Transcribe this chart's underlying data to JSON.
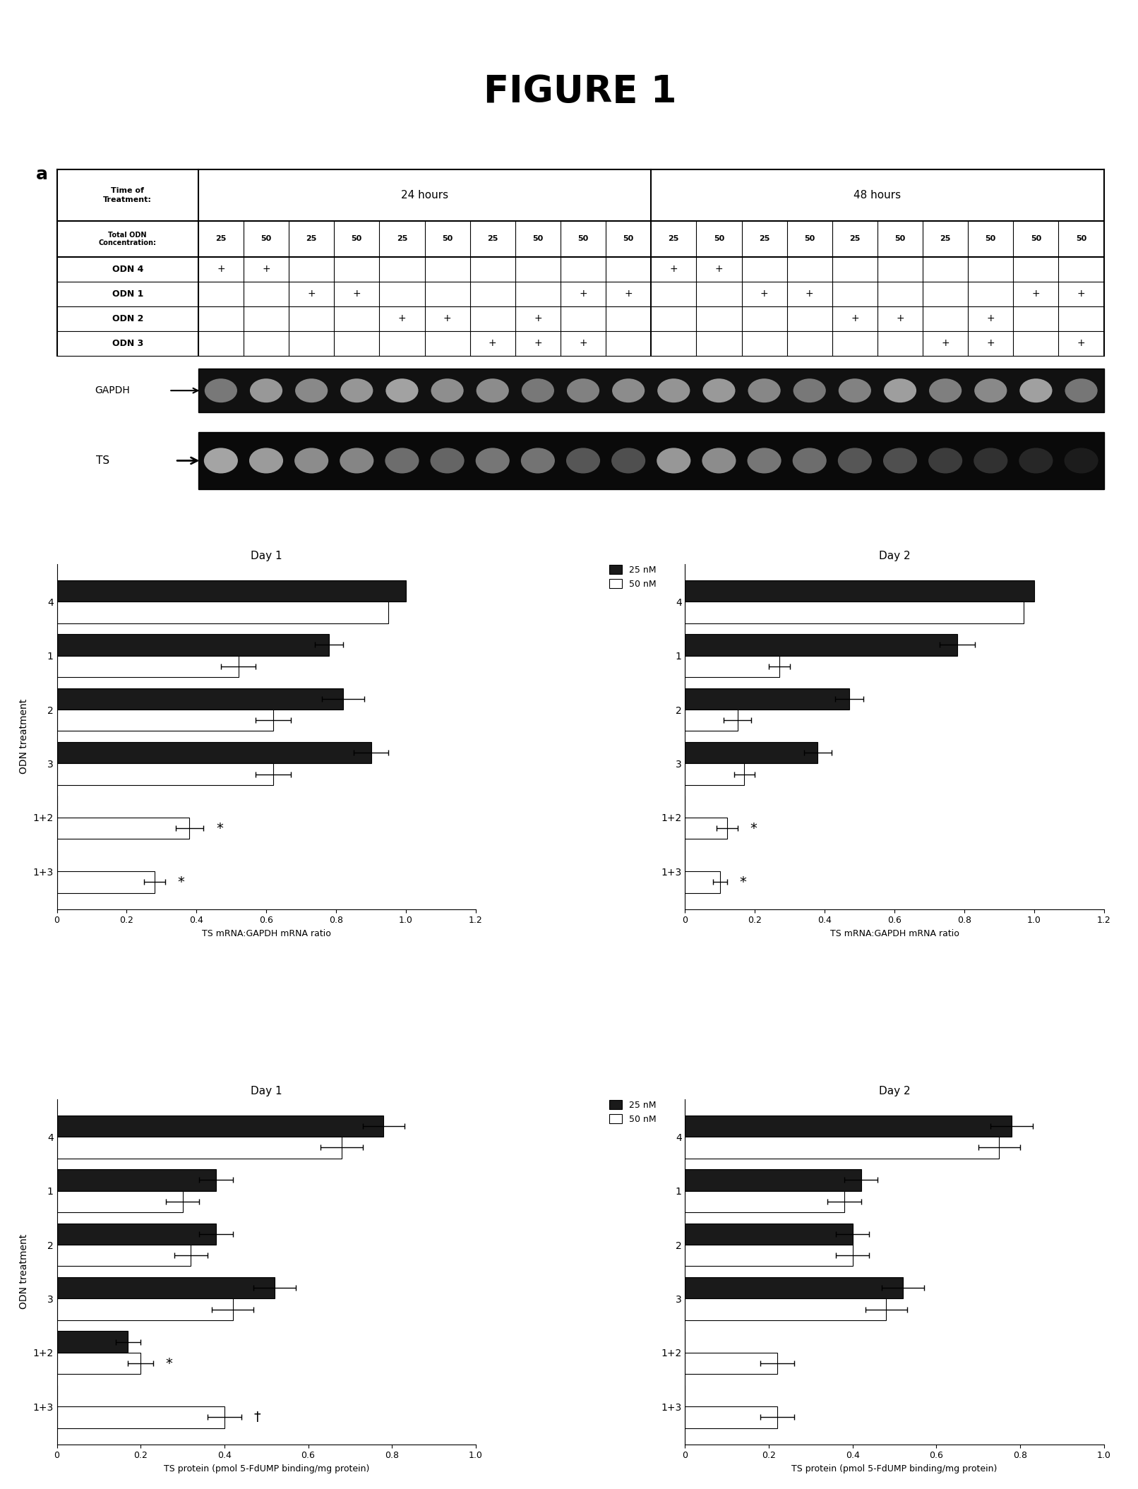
{
  "title": "FIGURE 1",
  "panel_a": {
    "conc_row": [
      "25",
      "50",
      "25",
      "50",
      "25",
      "50",
      "25",
      "50",
      "50",
      "50",
      "25",
      "50",
      "25",
      "50",
      "25",
      "50",
      "25",
      "50",
      "50",
      "50"
    ],
    "odn4": [
      "+",
      "+",
      "",
      "",
      "",
      "",
      "",
      "",
      "",
      "",
      "+",
      "+",
      "",
      "",
      "",
      "",
      "",
      "",
      "",
      ""
    ],
    "odn1": [
      "",
      "",
      "+",
      "+",
      "",
      "",
      "",
      "",
      "+",
      "+",
      "",
      "",
      "+",
      "+",
      "",
      "",
      "",
      "",
      "+",
      "+"
    ],
    "odn2": [
      "",
      "",
      "",
      "",
      "+",
      "+",
      "",
      "+",
      "",
      "",
      "",
      "",
      "",
      "",
      "+",
      "+",
      "",
      "+",
      "",
      ""
    ],
    "odn3": [
      "",
      "",
      "",
      "",
      "",
      "",
      "+",
      "+",
      "+",
      "",
      "",
      "",
      "",
      "",
      "",
      "",
      "+",
      "+",
      "",
      "+"
    ]
  },
  "panel_b": {
    "title_left": "Day 1",
    "title_right": "Day 2",
    "ylabel": "ODN treatment",
    "xlabel": "TS mRNA:GAPDH mRNA ratio",
    "categories": [
      "4",
      "1",
      "2",
      "3",
      "1+2",
      "1+3"
    ],
    "day1_25nM": [
      1.0,
      0.78,
      0.82,
      0.9,
      0.0,
      0.0
    ],
    "day1_50nM": [
      0.95,
      0.52,
      0.62,
      0.62,
      0.38,
      0.28
    ],
    "day1_25nM_err": [
      0.0,
      0.04,
      0.06,
      0.05,
      0.0,
      0.0
    ],
    "day1_50nM_err": [
      0.0,
      0.05,
      0.05,
      0.05,
      0.04,
      0.03
    ],
    "day2_25nM": [
      1.0,
      0.78,
      0.47,
      0.38,
      0.0,
      0.0
    ],
    "day2_50nM": [
      0.97,
      0.27,
      0.15,
      0.17,
      0.12,
      0.1
    ],
    "day2_25nM_err": [
      0.0,
      0.05,
      0.04,
      0.04,
      0.0,
      0.0
    ],
    "day2_50nM_err": [
      0.0,
      0.03,
      0.04,
      0.03,
      0.03,
      0.02
    ],
    "xlim": [
      0,
      1.2
    ],
    "xticks": [
      0,
      0.2,
      0.4,
      0.6,
      0.8,
      1.0,
      1.2
    ],
    "color_25nM": "#1a1a1a",
    "color_50nM": "#ffffff",
    "bar_height": 0.35
  },
  "panel_c": {
    "title_left": "Day 1",
    "title_right": "Day 2",
    "ylabel": "ODN treatment",
    "xlabel": "TS protein (pmol 5-FdUMP binding/mg protein)",
    "categories": [
      "4",
      "1",
      "2",
      "3",
      "1+2",
      "1+3"
    ],
    "day1_25nM": [
      0.78,
      0.38,
      0.38,
      0.52,
      0.17,
      0.0
    ],
    "day1_50nM": [
      0.68,
      0.3,
      0.32,
      0.42,
      0.2,
      0.4
    ],
    "day1_25nM_err": [
      0.05,
      0.04,
      0.04,
      0.05,
      0.03,
      0.0
    ],
    "day1_50nM_err": [
      0.05,
      0.04,
      0.04,
      0.05,
      0.03,
      0.04
    ],
    "day2_25nM": [
      0.78,
      0.42,
      0.4,
      0.52,
      0.0,
      0.0
    ],
    "day2_50nM": [
      0.75,
      0.38,
      0.4,
      0.48,
      0.22,
      0.22
    ],
    "day2_25nM_err": [
      0.05,
      0.04,
      0.04,
      0.05,
      0.0,
      0.0
    ],
    "day2_50nM_err": [
      0.05,
      0.04,
      0.04,
      0.05,
      0.04,
      0.04
    ],
    "xlim": [
      0,
      1.0
    ],
    "xticks": [
      0,
      0.2,
      0.4,
      0.6,
      0.8,
      1.0
    ],
    "color_25nM": "#1a1a1a",
    "color_50nM": "#ffffff",
    "bar_height": 0.35
  },
  "background_color": "#ffffff"
}
